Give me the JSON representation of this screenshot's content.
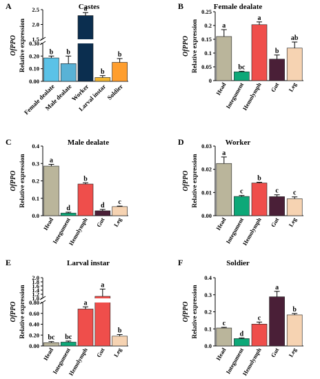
{
  "figure": {
    "gene": "OfPPO",
    "ylabel": "Relative expression"
  },
  "chart_data": [
    {
      "panel": "A",
      "type": "bar",
      "title": "Castes",
      "categories": [
        "Female dealate",
        "Male dealate",
        "Worker",
        "Larval instar",
        "Soldier"
      ],
      "values": [
        0.185,
        0.14,
        2.3,
        0.03,
        0.15
      ],
      "errors": [
        0.015,
        0.06,
        0.1,
        0.015,
        0.03
      ],
      "letters": [
        "b",
        "b",
        "a",
        "b",
        "b"
      ],
      "colors": [
        "#5BC2E7",
        "#59B2D6",
        "#0B2E4F",
        "#F2B530",
        "#FF9E2E"
      ],
      "broken_axis": true,
      "ylim_lower": [
        0,
        0.3
      ],
      "yticks_lower": [
        "0.00",
        "0.10",
        "0.20",
        "0.30"
      ],
      "ylim_upper": [
        1.5,
        2.5
      ],
      "yticks_upper": [
        "1.5",
        "2.0",
        "2.5"
      ],
      "xlabel_rotation": 45
    },
    {
      "panel": "B",
      "type": "bar",
      "title": "Female dealate",
      "categories": [
        "Head",
        "Integument",
        "Hemolymph",
        "Gut",
        "Leg"
      ],
      "values": [
        0.16,
        0.032,
        0.203,
        0.078,
        0.118
      ],
      "errors": [
        0.025,
        0.002,
        0.01,
        0.015,
        0.022
      ],
      "letters": [
        "a",
        "bc",
        "a",
        "b",
        "ab"
      ],
      "colors": [
        "#BAB59B",
        "#0DA878",
        "#EF4E4B",
        "#4A1F37",
        "#F6D3B2"
      ],
      "ylim": [
        0,
        0.25
      ],
      "yticks": [
        "0",
        "0.05",
        "0.1",
        "0.15",
        "0.2",
        "0.25"
      ]
    },
    {
      "panel": "C",
      "type": "bar",
      "title": "Male dealate",
      "categories": [
        "Head",
        "Integument",
        "Hemolymph",
        "Gut",
        "Leg"
      ],
      "values": [
        0.285,
        0.015,
        0.182,
        0.028,
        0.052
      ],
      "errors": [
        0.01,
        0.005,
        0.007,
        0.008,
        0.003
      ],
      "letters": [
        "a",
        "d",
        "b",
        "d",
        "c"
      ],
      "colors": [
        "#BAB59B",
        "#0DA878",
        "#EF4E4B",
        "#4A1F37",
        "#F6D3B2"
      ],
      "ylim": [
        0,
        0.4
      ],
      "yticks": [
        "0.0",
        "0.1",
        "0.2",
        "0.3",
        "0.4"
      ]
    },
    {
      "panel": "D",
      "type": "bar",
      "title": "Worker",
      "categories": [
        "Head",
        "Integument",
        "Hemolymph",
        "Gut",
        "Leg"
      ],
      "values": [
        0.0225,
        0.0083,
        0.0141,
        0.0082,
        0.0073
      ],
      "errors": [
        0.0028,
        0.0004,
        0.0003,
        0.0008,
        0.0008
      ],
      "letters": [
        "a",
        "c",
        "b",
        "c",
        "c"
      ],
      "colors": [
        "#BAB59B",
        "#0DA878",
        "#EF4E4B",
        "#4A1F37",
        "#F6D3B2"
      ],
      "ylim": [
        0,
        0.03
      ],
      "yticks": [
        "0.00",
        "0.01",
        "0.02",
        "0.03"
      ]
    },
    {
      "panel": "E",
      "type": "bar",
      "title": "Larval instar",
      "categories": [
        "Head",
        "Integument",
        "Hemolymph",
        "Gut",
        "Leg"
      ],
      "values": [
        0.06,
        0.07,
        0.68,
        1.1,
        0.18
      ],
      "errors": [
        0.02,
        0.02,
        0.04,
        0.35,
        0.03
      ],
      "letters": [
        "bc",
        "bc",
        "a",
        "a",
        "b"
      ],
      "colors": [
        "#BAB59B",
        "#0DA878",
        "#EF4E4B",
        "#EF4E4B",
        "#F6D3B2"
      ],
      "broken_axis": true,
      "ylim_lower": [
        0,
        0.8
      ],
      "yticks_lower": [
        "0.00",
        "0.20",
        "0.40",
        "0.60",
        "0.80"
      ],
      "ylim_upper": [
        1.0,
        2.0
      ],
      "yticks_upper": [
        "1.0",
        "1.2",
        "1.4",
        "1.6",
        "1.8",
        "2.0"
      ]
    },
    {
      "panel": "F",
      "type": "bar",
      "title": "Soldier",
      "categories": [
        "Head",
        "Integument",
        "Hemolymph",
        "Gut",
        "Leg"
      ],
      "values": [
        0.105,
        0.043,
        0.128,
        0.288,
        0.182
      ],
      "errors": [
        0.004,
        0.004,
        0.012,
        0.032,
        0.008
      ],
      "letters": [
        "c",
        "d",
        "c",
        "a",
        "b"
      ],
      "colors": [
        "#BAB59B",
        "#0DA878",
        "#EF4E4B",
        "#4A1F37",
        "#F6D3B2"
      ],
      "ylim": [
        0,
        0.4
      ],
      "yticks": [
        "0.0",
        "0.1",
        "0.2",
        "0.3",
        "0.4"
      ]
    }
  ]
}
